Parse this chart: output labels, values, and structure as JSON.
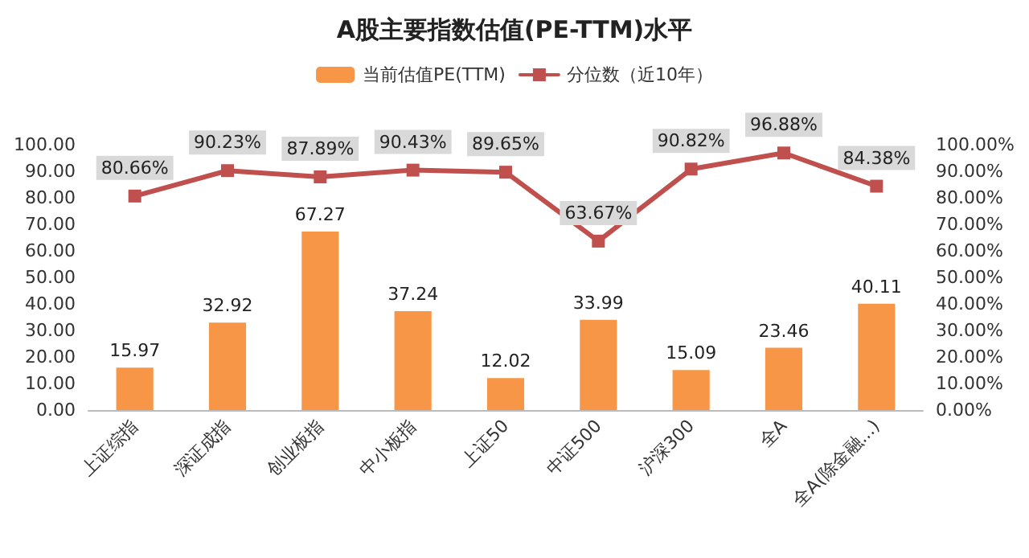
{
  "chart_data": {
    "type": "bar",
    "title": "A股主要指数估值(PE-TTM)水平",
    "categories": [
      "上证综指",
      "深证成指",
      "创业板指",
      "中小板指",
      "上证50",
      "中证500",
      "沪深300",
      "全A",
      "全A(除金融...)"
    ],
    "series": [
      {
        "name": "当前估值PE(TTM)",
        "color": "#f79646",
        "values": [
          15.97,
          32.92,
          67.27,
          37.24,
          12.02,
          33.99,
          15.09,
          23.46,
          40.11
        ],
        "value_labels": [
          "15.97",
          "32.92",
          "67.27",
          "37.24",
          "12.02",
          "33.99",
          "15.09",
          "23.46",
          "40.11"
        ]
      },
      {
        "name": "分位数（近10年）",
        "type": "line",
        "axis": "y2",
        "color": "#c0504d",
        "values": [
          80.66,
          90.23,
          87.89,
          90.43,
          89.65,
          63.67,
          90.82,
          96.88,
          84.38
        ],
        "value_labels": [
          "80.66%",
          "90.23%",
          "87.89%",
          "90.43%",
          "89.65%",
          "63.67%",
          "90.82%",
          "96.88%",
          "84.38%"
        ]
      }
    ],
    "ylim": [
      0,
      100
    ],
    "yticks": [
      {
        "value": 0,
        "label": "0.00"
      },
      {
        "value": 10,
        "label": "10.00"
      },
      {
        "value": 20,
        "label": "20.00"
      },
      {
        "value": 30,
        "label": "30.00"
      },
      {
        "value": 40,
        "label": "40.00"
      },
      {
        "value": 50,
        "label": "50.00"
      },
      {
        "value": 60,
        "label": "60.00"
      },
      {
        "value": 70,
        "label": "70.00"
      },
      {
        "value": 80,
        "label": "80.00"
      },
      {
        "value": 90,
        "label": "90.00"
      },
      {
        "value": 100,
        "label": "100.00"
      }
    ],
    "y2lim": [
      0,
      100
    ],
    "y2ticks": [
      {
        "value": 0,
        "label": "0.00%"
      },
      {
        "value": 10,
        "label": "10.00%"
      },
      {
        "value": 20,
        "label": "20.00%"
      },
      {
        "value": 30,
        "label": "30.00%"
      },
      {
        "value": 40,
        "label": "40.00%"
      },
      {
        "value": 50,
        "label": "50.00%"
      },
      {
        "value": 60,
        "label": "60.00%"
      },
      {
        "value": 70,
        "label": "70.00%"
      },
      {
        "value": 80,
        "label": "80.00%"
      },
      {
        "value": 90,
        "label": "90.00%"
      },
      {
        "value": 100,
        "label": "100.00%"
      }
    ],
    "grid": false,
    "legend": "top",
    "marker": "square",
    "line_style": "solid"
  }
}
